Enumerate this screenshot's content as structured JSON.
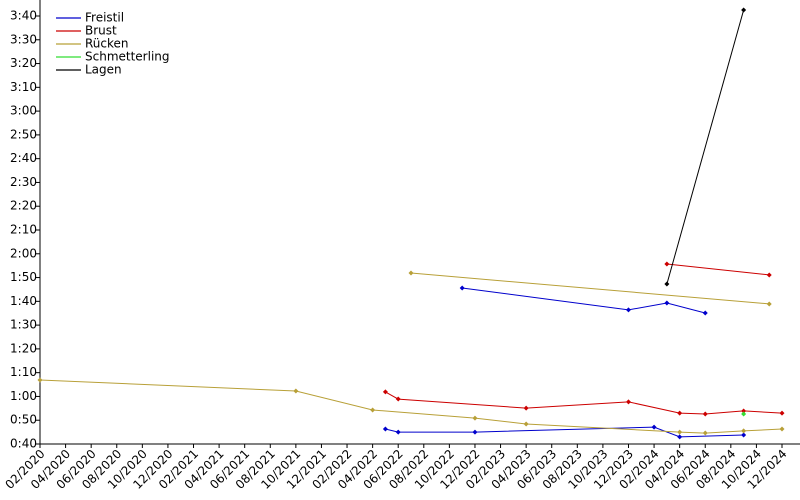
{
  "chart_data": {
    "type": "line",
    "xlim": [
      "2020-02",
      "2024-12"
    ],
    "xticks": [
      {
        "value": "2020-02",
        "label": "02/2020"
      },
      {
        "value": "2020-04",
        "label": "04/2020"
      },
      {
        "value": "2020-06",
        "label": "06/2020"
      },
      {
        "value": "2020-08",
        "label": "08/2020"
      },
      {
        "value": "2020-10",
        "label": "10/2020"
      },
      {
        "value": "2020-12",
        "label": "12/2020"
      },
      {
        "value": "2021-02",
        "label": "02/2021"
      },
      {
        "value": "2021-04",
        "label": "04/2021"
      },
      {
        "value": "2021-06",
        "label": "06/2021"
      },
      {
        "value": "2021-08",
        "label": "08/2021"
      },
      {
        "value": "2021-10",
        "label": "10/2021"
      },
      {
        "value": "2021-12",
        "label": "12/2021"
      },
      {
        "value": "2022-02",
        "label": "02/2022"
      },
      {
        "value": "2022-04",
        "label": "04/2022"
      },
      {
        "value": "2022-06",
        "label": "06/2022"
      },
      {
        "value": "2022-08",
        "label": "08/2022"
      },
      {
        "value": "2022-10",
        "label": "10/2022"
      },
      {
        "value": "2022-12",
        "label": "12/2022"
      },
      {
        "value": "2023-02",
        "label": "02/2023"
      },
      {
        "value": "2023-04",
        "label": "04/2023"
      },
      {
        "value": "2023-06",
        "label": "06/2023"
      },
      {
        "value": "2023-08",
        "label": "08/2023"
      },
      {
        "value": "2023-10",
        "label": "10/2023"
      },
      {
        "value": "2023-12",
        "label": "12/2023"
      },
      {
        "value": "2024-02",
        "label": "02/2024"
      },
      {
        "value": "2024-04",
        "label": "04/2024"
      },
      {
        "value": "2024-06",
        "label": "06/2024"
      },
      {
        "value": "2024-08",
        "label": "08/2024"
      },
      {
        "value": "2024-10",
        "label": "10/2024"
      },
      {
        "value": "2024-12",
        "label": "12/2024"
      }
    ],
    "ylim": [
      40,
      220
    ],
    "yticks": [
      {
        "value": 40,
        "label": "0:40"
      },
      {
        "value": 50,
        "label": "0:50"
      },
      {
        "value": 60,
        "label": "1:00"
      },
      {
        "value": 70,
        "label": "1:10"
      },
      {
        "value": 80,
        "label": "1:20"
      },
      {
        "value": 90,
        "label": "1:30"
      },
      {
        "value": 100,
        "label": "1:40"
      },
      {
        "value": 110,
        "label": "1:50"
      },
      {
        "value": 120,
        "label": "2:00"
      },
      {
        "value": 130,
        "label": "2:10"
      },
      {
        "value": 140,
        "label": "2:20"
      },
      {
        "value": 150,
        "label": "2:30"
      },
      {
        "value": 160,
        "label": "2:40"
      },
      {
        "value": 170,
        "label": "2:50"
      },
      {
        "value": 180,
        "label": "3:00"
      },
      {
        "value": 190,
        "label": "3:10"
      },
      {
        "value": 200,
        "label": "3:20"
      },
      {
        "value": 210,
        "label": "3:30"
      },
      {
        "value": 220,
        "label": "3:40"
      }
    ],
    "series": [
      {
        "name": "Freistil",
        "color": "#0000cc",
        "x": [
          "2022-05",
          "2022-06",
          "2022-12",
          "2024-02",
          "2024-04",
          "2024-09",
          null,
          "2022-11",
          "2023-12",
          "2024-03",
          "2024-06"
        ],
        "values": [
          46.3,
          45,
          45,
          47.1,
          43,
          43.8,
          null,
          105.6,
          96.4,
          99.3,
          95.1
        ]
      },
      {
        "name": "Brust",
        "color": "#cc0000",
        "x": [
          "2022-05",
          "2022-06",
          "2023-04",
          "2023-12",
          "2024-04",
          "2024-06",
          "2024-09",
          "2024-12",
          null,
          "2024-03",
          "2024-11"
        ],
        "values": [
          61.9,
          58.9,
          55.1,
          57.7,
          53,
          52.6,
          53.9,
          53,
          null,
          115.7,
          111.1
        ]
      },
      {
        "name": "Rücken",
        "color": "#b8a038",
        "x": [
          "2020-02",
          "2021-10",
          "2022-04",
          "2022-12",
          "2023-04",
          "2024-04",
          "2024-06",
          "2024-09",
          "2024-12",
          null,
          "2022-07",
          "2024-11"
        ],
        "values": [
          66.9,
          62.3,
          54.3,
          50.9,
          48.4,
          45,
          44.6,
          45.5,
          46.3,
          null,
          111.9,
          98.9
        ]
      },
      {
        "name": "Schmetterling",
        "color": "#33dd33",
        "x": [
          "2024-09"
        ],
        "values": [
          52.6
        ]
      },
      {
        "name": "Lagen",
        "color": "#000000",
        "x": [
          "2024-03",
          "2024-09"
        ],
        "values": [
          107.3,
          222.5
        ]
      }
    ]
  }
}
